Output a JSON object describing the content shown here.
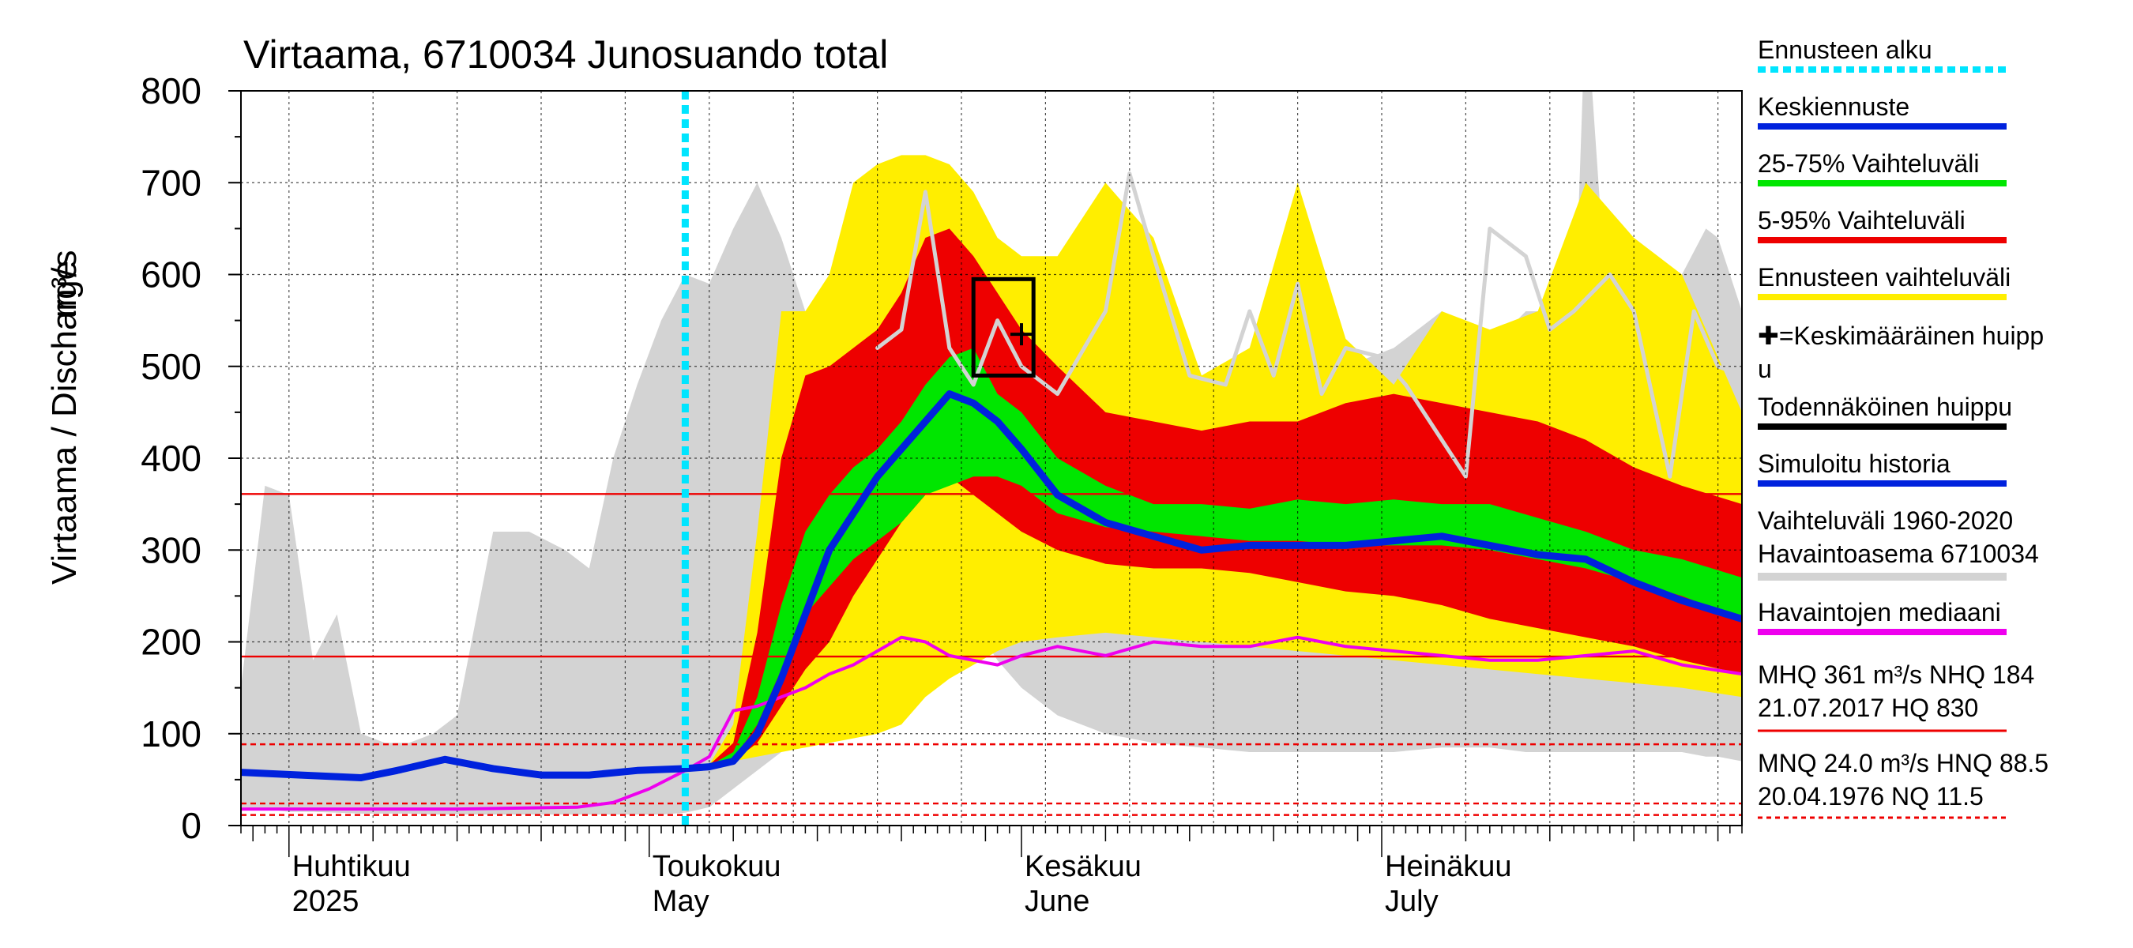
{
  "chart_data": {
    "type": "area",
    "title": "Virtaama, 6710034 Junosuando total",
    "ylabel": "Virtaama / Discharge",
    "yunit": "m³/s",
    "ylim": [
      0,
      800
    ],
    "yticks": [
      "0",
      "100",
      "200",
      "300",
      "400",
      "500",
      "600",
      "700",
      "800"
    ],
    "xlim": [
      "2025-03-28",
      "2025-07-31"
    ],
    "month_labels": [
      {
        "date": "2025-04-01",
        "fi": "Huhtikuu",
        "en": "2025"
      },
      {
        "date": "2025-05-01",
        "fi": "Toukokuu",
        "en": "May"
      },
      {
        "date": "2025-06-01",
        "fi": "Kesäkuu",
        "en": "June"
      },
      {
        "date": "2025-07-01",
        "fi": "Heinäkuu",
        "en": "July"
      }
    ],
    "forecast_start": "2025-05-04",
    "legend": [
      {
        "key": "start",
        "label": "Ennusteen alku",
        "color": "#00e5ff",
        "style": "dotted"
      },
      {
        "key": "median",
        "label": "Keskiennuste",
        "color": "#0022dd",
        "style": "line"
      },
      {
        "key": "p25_75",
        "label": "25-75% Vaihteluväli",
        "color": "#00e600",
        "style": "line"
      },
      {
        "key": "p5_95",
        "label": "5-95% Vaihteluväli",
        "color": "#ee0000",
        "style": "line"
      },
      {
        "key": "range",
        "label": "Ennusteen vaihteluväli",
        "color": "#ffee00",
        "style": "line"
      },
      {
        "key": "meanpeak",
        "label": "✚=Keskimääräinen huipp",
        "label2": "u",
        "color": "#000000",
        "style": "none"
      },
      {
        "key": "probpeak",
        "label": "Todennäköinen huippu",
        "color": "#000000",
        "style": "line"
      },
      {
        "key": "simhist",
        "label": "Simuloitu historia",
        "color": "#0022dd",
        "style": "line"
      },
      {
        "key": "hist",
        "label": "Vaihteluväli 1960-2020",
        "label2": " Havaintoasema 6710034",
        "color": "#d3d3d3",
        "style": "line"
      },
      {
        "key": "obsmed",
        "label": "Havaintojen mediaani",
        "color": "#ee00ee",
        "style": "line"
      }
    ],
    "stats": {
      "line1": "MHQ  361 m³/s NHQ  184",
      "line2": "21.07.2017 HQ  830",
      "line3": "MNQ 24.0 m³/s HNQ 88.5",
      "line4": "20.04.1976 NQ 11.5"
    },
    "reference_lines": [
      {
        "name": "MHQ",
        "value": 361,
        "style": "solid"
      },
      {
        "name": "NHQ",
        "value": 184,
        "style": "solid"
      },
      {
        "name": "HNQ",
        "value": 88.5,
        "style": "dashed"
      },
      {
        "name": "MNQ",
        "value": 24.0,
        "style": "dashed"
      },
      {
        "name": "NQ",
        "value": 11.5,
        "style": "dashed"
      }
    ],
    "mean_peak": {
      "date": "2025-06-01",
      "value": 535
    },
    "prob_peak_box": {
      "date_from": "2025-05-28",
      "date_to": "2025-06-02",
      "value_from": 490,
      "value_to": 595
    },
    "history_band": {
      "x": [
        "2025-03-28",
        "2025-03-30",
        "2025-04-01",
        "2025-04-03",
        "2025-04-05",
        "2025-04-07",
        "2025-04-09",
        "2025-04-11",
        "2025-04-13",
        "2025-04-15",
        "2025-04-18",
        "2025-04-21",
        "2025-04-24",
        "2025-04-26",
        "2025-04-28",
        "2025-04-30",
        "2025-05-02",
        "2025-05-04",
        "2025-05-06",
        "2025-05-08",
        "2025-05-10",
        "2025-05-12",
        "2025-05-14",
        "2025-05-16",
        "2025-05-18",
        "2025-05-20",
        "2025-05-22",
        "2025-05-24",
        "2025-05-26",
        "2025-05-28",
        "2025-05-30",
        "2025-06-01",
        "2025-06-04",
        "2025-06-08",
        "2025-06-12",
        "2025-06-16",
        "2025-06-20",
        "2025-06-24",
        "2025-06-28",
        "2025-07-02",
        "2025-07-06",
        "2025-07-10",
        "2025-07-13",
        "2025-07-15",
        "2025-07-17",
        "2025-07-18",
        "2025-07-20",
        "2025-07-22",
        "2025-07-24",
        "2025-07-26",
        "2025-07-28",
        "2025-07-29",
        "2025-07-31"
      ],
      "upper": [
        150,
        370,
        360,
        180,
        230,
        100,
        90,
        90,
        100,
        120,
        320,
        320,
        300,
        280,
        400,
        480,
        550,
        600,
        590,
        650,
        700,
        640,
        560,
        560,
        590,
        700,
        620,
        600,
        580,
        540,
        440,
        420,
        400,
        390,
        380,
        370,
        400,
        470,
        500,
        520,
        560,
        520,
        560,
        560,
        520,
        900,
        520,
        500,
        480,
        600,
        650,
        640,
        560
      ],
      "lower": [
        20,
        18,
        15,
        15,
        14,
        13,
        13,
        13,
        12,
        12,
        12,
        12,
        12,
        12,
        12,
        12,
        12,
        14,
        20,
        40,
        60,
        80,
        100,
        150,
        180,
        220,
        250,
        260,
        250,
        220,
        180,
        150,
        120,
        100,
        90,
        85,
        80,
        80,
        80,
        80,
        85,
        85,
        80,
        80,
        80,
        80,
        80,
        80,
        80,
        80,
        75,
        75,
        70
      ]
    },
    "forecast": {
      "x": [
        "2025-05-04",
        "2025-05-06",
        "2025-05-08",
        "2025-05-10",
        "2025-05-12",
        "2025-05-14",
        "2025-05-16",
        "2025-05-18",
        "2025-05-20",
        "2025-05-22",
        "2025-05-24",
        "2025-05-26",
        "2025-05-28",
        "2025-05-30",
        "2025-06-01",
        "2025-06-04",
        "2025-06-08",
        "2025-06-12",
        "2025-06-16",
        "2025-06-20",
        "2025-06-24",
        "2025-06-28",
        "2025-07-02",
        "2025-07-06",
        "2025-07-10",
        "2025-07-14",
        "2025-07-18",
        "2025-07-22",
        "2025-07-26",
        "2025-07-31"
      ],
      "min": [
        62,
        65,
        70,
        75,
        80,
        85,
        90,
        95,
        100,
        110,
        140,
        160,
        175,
        190,
        200,
        205,
        210,
        205,
        200,
        195,
        190,
        185,
        180,
        175,
        170,
        165,
        160,
        155,
        150,
        140
      ],
      "p5": [
        62,
        65,
        70,
        90,
        130,
        170,
        200,
        250,
        290,
        330,
        360,
        380,
        360,
        340,
        320,
        300,
        285,
        280,
        280,
        275,
        265,
        255,
        250,
        240,
        225,
        215,
        205,
        195,
        180,
        165
      ],
      "p25": [
        62,
        65,
        72,
        110,
        170,
        230,
        260,
        290,
        310,
        330,
        360,
        370,
        380,
        380,
        370,
        340,
        325,
        320,
        315,
        310,
        310,
        305,
        305,
        305,
        300,
        290,
        280,
        265,
        250,
        225
      ],
      "median": [
        62,
        64,
        70,
        100,
        160,
        230,
        300,
        340,
        380,
        410,
        440,
        470,
        460,
        440,
        410,
        360,
        330,
        315,
        300,
        305,
        305,
        305,
        310,
        315,
        305,
        295,
        290,
        265,
        245,
        225
      ],
      "p75": [
        62,
        65,
        80,
        140,
        240,
        320,
        360,
        390,
        410,
        440,
        480,
        510,
        520,
        470,
        450,
        400,
        370,
        350,
        350,
        345,
        355,
        350,
        355,
        350,
        350,
        335,
        320,
        300,
        290,
        270
      ],
      "p95": [
        62,
        66,
        90,
        210,
        400,
        490,
        500,
        520,
        540,
        580,
        640,
        650,
        620,
        580,
        540,
        500,
        450,
        440,
        430,
        440,
        440,
        460,
        470,
        460,
        450,
        440,
        420,
        390,
        370,
        350
      ],
      "max": [
        62,
        66,
        110,
        320,
        560,
        560,
        600,
        700,
        720,
        730,
        730,
        720,
        690,
        640,
        620,
        620,
        700,
        640,
        490,
        520,
        700,
        530,
        480,
        560,
        540,
        560,
        700,
        640,
        600,
        450
      ],
      "member_grey_x": [
        "2025-05-20",
        "2025-05-22",
        "2025-05-24",
        "2025-05-26",
        "2025-05-28",
        "2025-05-30",
        "2025-06-01",
        "2025-06-04",
        "2025-06-08",
        "2025-06-10",
        "2025-06-12",
        "2025-06-15",
        "2025-06-18",
        "2025-06-20",
        "2025-06-22",
        "2025-06-24",
        "2025-06-26",
        "2025-06-28",
        "2025-07-01",
        "2025-07-03",
        "2025-07-06",
        "2025-07-08",
        "2025-07-10",
        "2025-07-13",
        "2025-07-15",
        "2025-07-17",
        "2025-07-20",
        "2025-07-22",
        "2025-07-25",
        "2025-07-27",
        "2025-07-29",
        "2025-07-31"
      ],
      "member_grey_y": [
        520,
        540,
        690,
        520,
        480,
        550,
        500,
        470,
        560,
        710,
        620,
        490,
        480,
        560,
        490,
        590,
        470,
        520,
        510,
        480,
        420,
        380,
        650,
        620,
        540,
        560,
        600,
        560,
        380,
        560,
        500,
        490
      ]
    },
    "obs_median": {
      "x": [
        "2025-03-28",
        "2025-04-05",
        "2025-04-15",
        "2025-04-25",
        "2025-04-28",
        "2025-05-01",
        "2025-05-04",
        "2025-05-06",
        "2025-05-08",
        "2025-05-10",
        "2025-05-12",
        "2025-05-14",
        "2025-05-16",
        "2025-05-18",
        "2025-05-20",
        "2025-05-22",
        "2025-05-24",
        "2025-05-26",
        "2025-05-28",
        "2025-05-30",
        "2025-06-01",
        "2025-06-04",
        "2025-06-08",
        "2025-06-12",
        "2025-06-16",
        "2025-06-20",
        "2025-06-24",
        "2025-06-28",
        "2025-07-02",
        "2025-07-06",
        "2025-07-10",
        "2025-07-14",
        "2025-07-18",
        "2025-07-22",
        "2025-07-26",
        "2025-07-31"
      ],
      "y": [
        18,
        18,
        18,
        20,
        25,
        40,
        60,
        75,
        125,
        130,
        140,
        150,
        165,
        175,
        190,
        205,
        200,
        185,
        180,
        175,
        185,
        195,
        185,
        200,
        195,
        195,
        205,
        195,
        190,
        185,
        180,
        180,
        185,
        190,
        175,
        165
      ]
    },
    "sim_history": {
      "x": [
        "2025-03-28",
        "2025-04-02",
        "2025-04-07",
        "2025-04-10",
        "2025-04-14",
        "2025-04-18",
        "2025-04-22",
        "2025-04-26",
        "2025-04-30",
        "2025-05-04"
      ],
      "y": [
        58,
        55,
        52,
        60,
        72,
        62,
        55,
        55,
        60,
        62
      ]
    }
  }
}
